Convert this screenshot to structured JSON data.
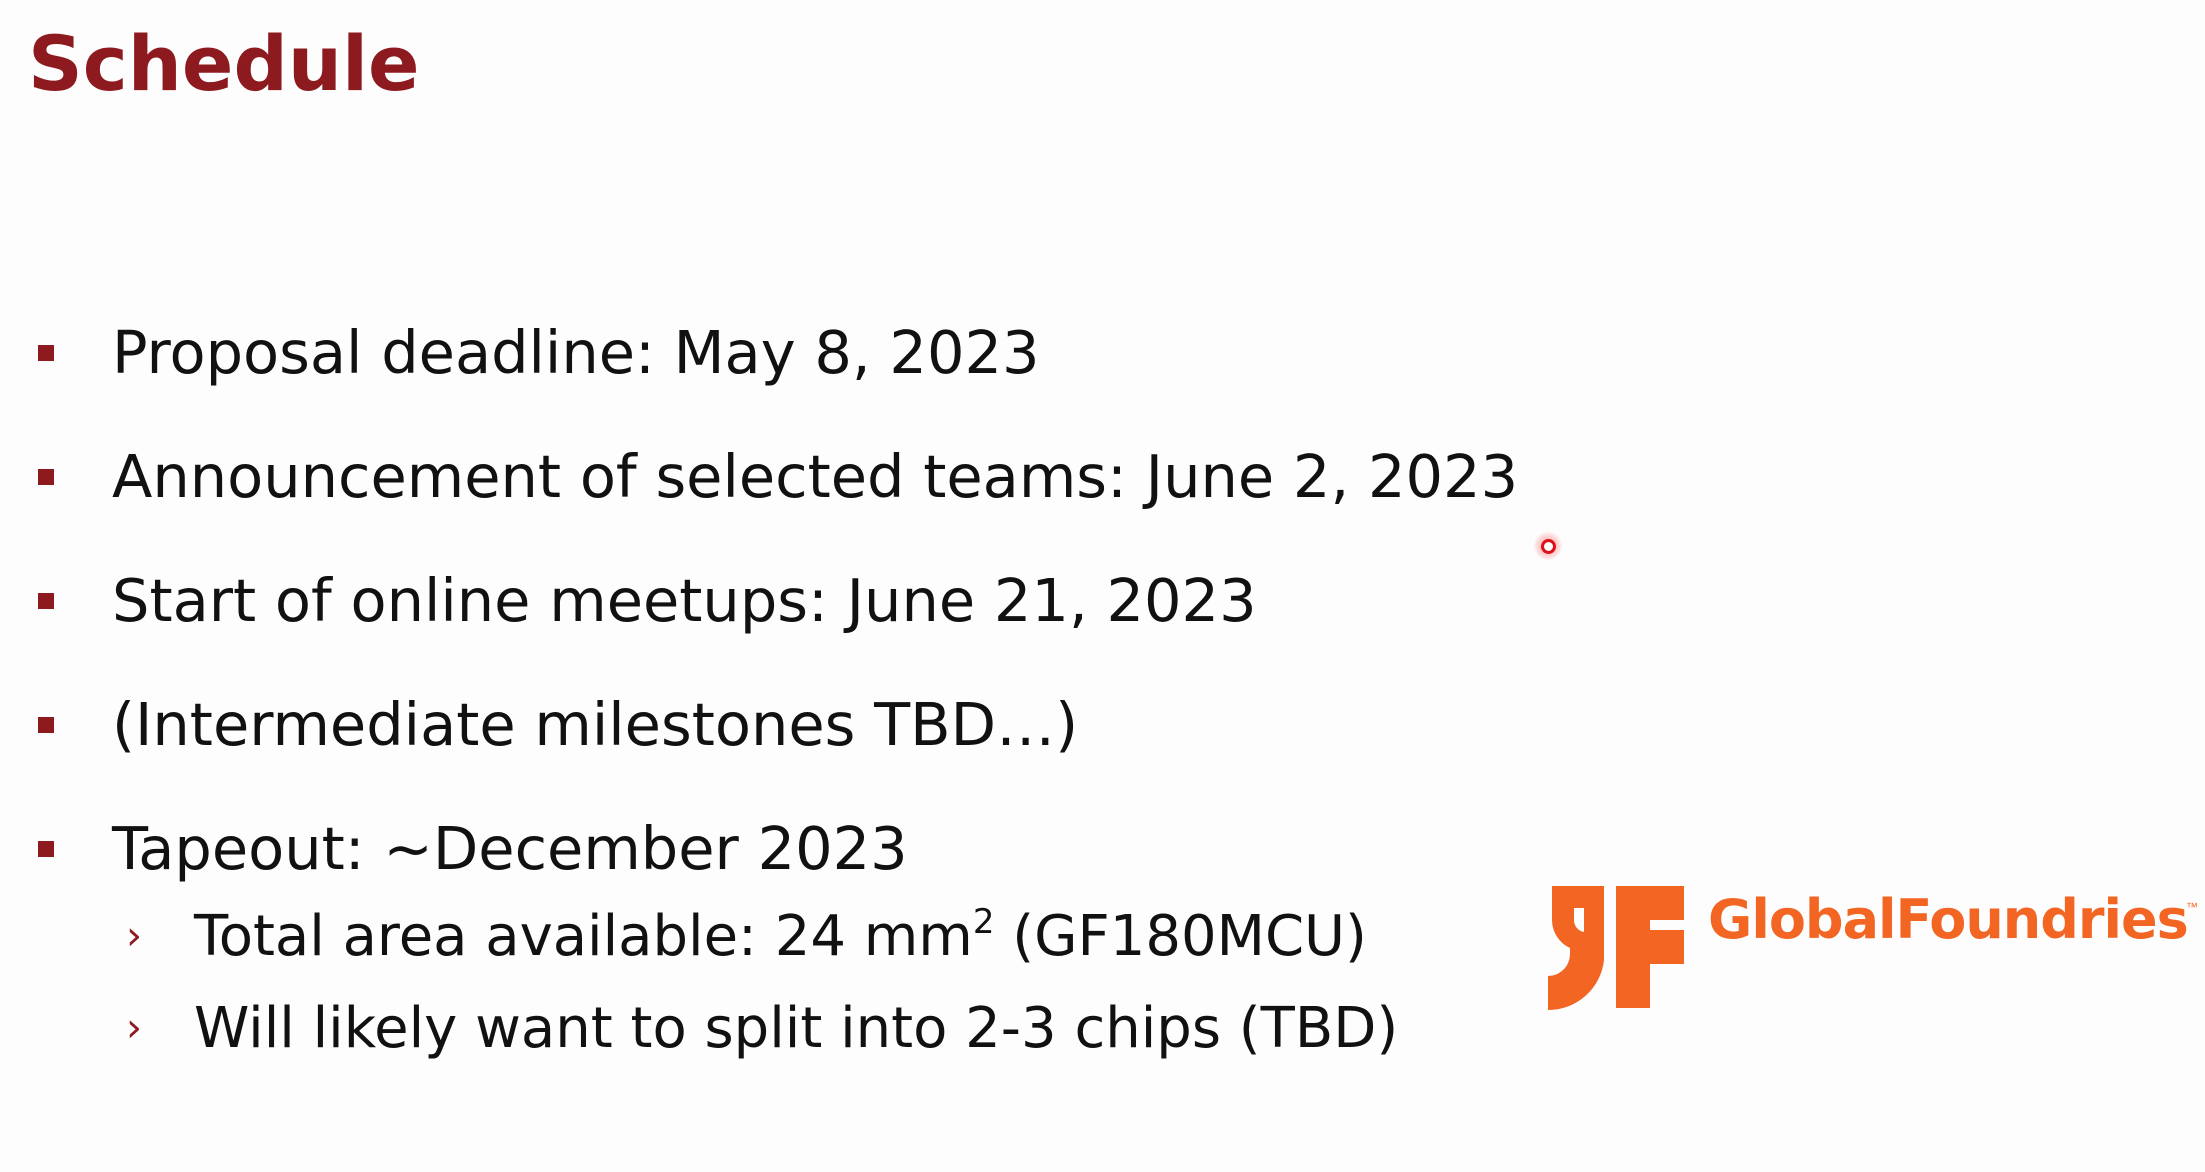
{
  "slide": {
    "title": "Schedule",
    "bullets": [
      {
        "text": "Proposal deadline: May 8, 2023"
      },
      {
        "text": "Announcement of selected teams: June 2, 2023"
      },
      {
        "text": "Start of online meetups: June 21, 2023"
      },
      {
        "text": "(Intermediate milestones TBD…)"
      },
      {
        "text": "Tapeout: ~December 2023"
      }
    ],
    "sub_bullets": [
      {
        "prefix": "Total area available: 24 mm",
        "sup": "2",
        "suffix": " (GF180MCU)"
      },
      {
        "text": "Will likely want to split into 2-3 chips (TBD)"
      }
    ],
    "sub_marker": "›"
  },
  "logo": {
    "name": "GlobalFoundries",
    "trademark": "™",
    "brand_color": "#f26522"
  },
  "colors": {
    "title": "#8c1a1f",
    "bullet_marker": "#8c1a1f",
    "body_text": "#111111",
    "pointer": "#e0101a"
  }
}
